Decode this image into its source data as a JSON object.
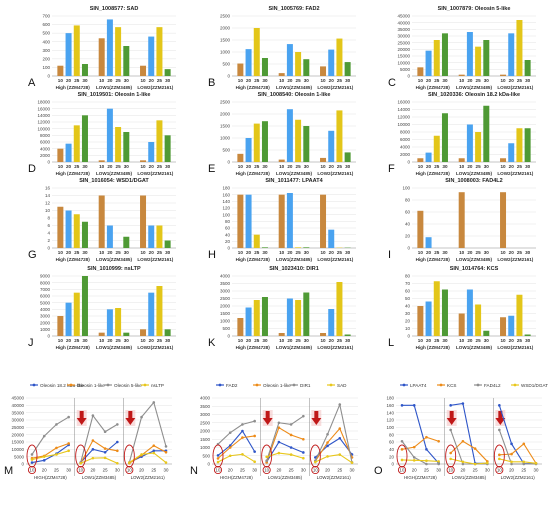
{
  "x_ticks": [
    "10",
    "20",
    "25",
    "30"
  ],
  "groups": [
    "High (ZZM4728)",
    "LOW1(ZZM3485)",
    "LOW2(ZZM2161)"
  ],
  "colors": {
    "c10": "#c8883e",
    "c20": "#4aa3f0",
    "c25": "#e3c619",
    "c30": "#4f9a35",
    "grid": "#e3e3e3",
    "axis": "#9a9a9a",
    "red": "#c01818"
  },
  "chart_data": [
    {
      "type": "bar",
      "letter": "A",
      "title": "SIN_1008577: SAD",
      "ylim": [
        0,
        700
      ],
      "yticks": [
        "0",
        "100",
        "200",
        "300",
        "400",
        "500",
        "600",
        "700"
      ],
      "values": [
        [
          120,
          500,
          590,
          140
        ],
        [
          440,
          660,
          570,
          350
        ],
        [
          120,
          460,
          570,
          80
        ]
      ]
    },
    {
      "type": "bar",
      "letter": "B",
      "title": "SIN_1005769: FAD2",
      "ylim": [
        0,
        2500
      ],
      "yticks": [
        "0",
        "500",
        "1000",
        "1500",
        "2000",
        "2500"
      ],
      "values": [
        [
          520,
          1120,
          2000,
          750
        ],
        [
          120,
          1330,
          1000,
          700
        ],
        [
          400,
          1100,
          1560,
          580
        ]
      ]
    },
    {
      "type": "bar",
      "letter": "C",
      "title": "SIN_1007879: Oleosin 5-like",
      "ylim": [
        0,
        45000
      ],
      "yticks": [
        "0",
        "5000",
        "10000",
        "15000",
        "20000",
        "25000",
        "30000",
        "35000",
        "40000",
        "45000"
      ],
      "values": [
        [
          6500,
          19000,
          27000,
          32000
        ],
        [
          1000,
          33000,
          22000,
          27000
        ],
        [
          1000,
          32000,
          42000,
          12000
        ]
      ]
    },
    {
      "type": "bar",
      "letter": "D",
      "title": "SIN_1019501: Oleosin 1-like",
      "ylim": [
        0,
        18000
      ],
      "yticks": [
        "0",
        "2000",
        "4000",
        "6000",
        "8000",
        "10000",
        "12000",
        "14000",
        "16000",
        "18000"
      ],
      "values": [
        [
          4000,
          5500,
          11000,
          14000
        ],
        [
          500,
          16000,
          10500,
          9000
        ],
        [
          500,
          6000,
          12500,
          8000
        ]
      ]
    },
    {
      "type": "bar",
      "letter": "E",
      "title": "SIN_1008540: Oleosin 1-like",
      "ylim": [
        0,
        2500
      ],
      "yticks": [
        "0",
        "500",
        "1000",
        "1500",
        "2000",
        "2500"
      ],
      "values": [
        [
          340,
          1000,
          1600,
          1700
        ],
        [
          100,
          2200,
          1760,
          1500
        ],
        [
          170,
          1300,
          2150,
          400
        ]
      ]
    },
    {
      "type": "bar",
      "letter": "F",
      "title": "SIN_1020336: Oleosin 18.2 kDa-like",
      "ylim": [
        0,
        16000
      ],
      "yticks": [
        "0",
        "2000",
        "4000",
        "6000",
        "8000",
        "10000",
        "12000",
        "14000",
        "16000"
      ],
      "values": [
        [
          1000,
          2500,
          7000,
          13000
        ],
        [
          1000,
          10000,
          8000,
          15000
        ],
        [
          1000,
          5000,
          9000,
          9000
        ]
      ]
    },
    {
      "type": "bar",
      "letter": "G",
      "title": "SIN_1016054: WSD1/DGAT",
      "ylim": [
        0,
        16
      ],
      "yticks": [
        "0",
        "2",
        "4",
        "6",
        "8",
        "10",
        "12",
        "14",
        "16"
      ],
      "values": [
        [
          11,
          10,
          9,
          7
        ],
        [
          14,
          6,
          0,
          3
        ],
        [
          14,
          6,
          6,
          2
        ]
      ]
    },
    {
      "type": "bar",
      "letter": "H",
      "title": "SIN_1011477: LPAAT4",
      "ylim": [
        0,
        180
      ],
      "yticks": [
        "0",
        "20",
        "40",
        "60",
        "80",
        "100",
        "120",
        "140",
        "160",
        "180"
      ],
      "values": [
        [
          160,
          160,
          40,
          2
        ],
        [
          160,
          165,
          2,
          2
        ],
        [
          160,
          55,
          1,
          1
        ]
      ]
    },
    {
      "type": "bar",
      "letter": "I",
      "title": "SIN_1008003: FAD4L2",
      "ylim": [
        0,
        100
      ],
      "yticks": [
        "0",
        "20",
        "40",
        "60",
        "80",
        "100"
      ],
      "values": [
        [
          62,
          18,
          0,
          0
        ],
        [
          93,
          0,
          0,
          0
        ],
        [
          93,
          0,
          0,
          0
        ]
      ]
    },
    {
      "type": "bar",
      "letter": "J",
      "title": "SIN_1010999: nsLTP",
      "ylim": [
        0,
        9000
      ],
      "yticks": [
        "0",
        "1000",
        "2000",
        "3000",
        "4000",
        "5000",
        "6000",
        "7000",
        "8000",
        "9000"
      ],
      "values": [
        [
          3000,
          5000,
          6500,
          9000
        ],
        [
          500,
          4000,
          4200,
          500
        ],
        [
          1000,
          6500,
          7500,
          1000
        ]
      ]
    },
    {
      "type": "bar",
      "letter": "K",
      "title": "SIN_1023410: DIR1",
      "ylim": [
        0,
        4000
      ],
      "yticks": [
        "0",
        "500",
        "1000",
        "1500",
        "2000",
        "2500",
        "3000",
        "3500",
        "4000"
      ],
      "values": [
        [
          1200,
          1900,
          2400,
          2600
        ],
        [
          200,
          2500,
          2400,
          2900
        ],
        [
          200,
          1800,
          3600,
          100
        ]
      ]
    },
    {
      "type": "bar",
      "letter": "L",
      "title": "SIN_1014764: KCS",
      "ylim": [
        0,
        80
      ],
      "yticks": [
        "0",
        "10",
        "20",
        "30",
        "40",
        "50",
        "60",
        "70",
        "80"
      ],
      "values": [
        [
          40,
          46,
          73,
          62
        ],
        [
          30,
          62,
          42,
          7
        ],
        [
          25,
          27,
          55,
          2
        ]
      ]
    }
  ],
  "line_charts": [
    {
      "letter": "M",
      "ylim": [
        0,
        45000
      ],
      "yticks": [
        "0",
        "5000",
        "10000",
        "15000",
        "20000",
        "25000",
        "30000",
        "35000",
        "40000",
        "45000"
      ],
      "legend": [
        "Oleosin 18.2 kDa-like",
        "Oleosin 1-like",
        "Oleosin 5-like",
        "nsLTP"
      ],
      "colors": [
        "#2e55c8",
        "#ed8b18",
        "#8e8e8e",
        "#e8c71c"
      ],
      "series": [
        [
          [
            1000,
            2500,
            7000,
            13000
          ],
          [
            1000,
            10000,
            8000,
            15000
          ],
          [
            1000,
            5000,
            9000,
            9000
          ]
        ],
        [
          [
            4000,
            5500,
            11000,
            14000
          ],
          [
            500,
            16000,
            10500,
            9000
          ],
          [
            500,
            6000,
            12500,
            8000
          ]
        ],
        [
          [
            6500,
            19000,
            27000,
            32000
          ],
          [
            1000,
            33000,
            22000,
            27000
          ],
          [
            1000,
            32000,
            42000,
            12000
          ]
        ],
        [
          [
            3000,
            5000,
            6500,
            9000
          ],
          [
            500,
            4000,
            4200,
            500
          ],
          [
            1000,
            6500,
            7500,
            1000
          ]
        ]
      ]
    },
    {
      "letter": "N",
      "ylim": [
        0,
        4000
      ],
      "yticks": [
        "0",
        "500",
        "1000",
        "1500",
        "2000",
        "2500",
        "3000",
        "3500",
        "4000"
      ],
      "legend": [
        "FAD2",
        "Oleosin 1-like",
        "DIR1",
        "SAD"
      ],
      "colors": [
        "#2e55c8",
        "#ed8b18",
        "#8e8e8e",
        "#e8c71c"
      ],
      "series": [
        [
          [
            520,
            1120,
            2000,
            750
          ],
          [
            120,
            1330,
            1000,
            700
          ],
          [
            400,
            1100,
            1560,
            580
          ]
        ],
        [
          [
            340,
            1000,
            1600,
            1700
          ],
          [
            100,
            2200,
            1760,
            1500
          ],
          [
            170,
            1300,
            2150,
            400
          ]
        ],
        [
          [
            1200,
            1900,
            2400,
            2600
          ],
          [
            200,
            2500,
            2400,
            2900
          ],
          [
            200,
            1800,
            3600,
            100
          ]
        ],
        [
          [
            120,
            500,
            590,
            140
          ],
          [
            440,
            660,
            570,
            350
          ],
          [
            120,
            460,
            570,
            80
          ]
        ]
      ]
    },
    {
      "letter": "O",
      "ylim": [
        0,
        180
      ],
      "yticks": [
        "0",
        "20",
        "40",
        "60",
        "80",
        "100",
        "120",
        "140",
        "160",
        "180"
      ],
      "legend": [
        "LPAAT4",
        "KCS",
        "FAD4L2",
        "WSD1/DGAT"
      ],
      "colors": [
        "#2e55c8",
        "#ed8b18",
        "#8e8e8e",
        "#e8c71c"
      ],
      "series": [
        [
          [
            160,
            160,
            40,
            2
          ],
          [
            160,
            165,
            2,
            2
          ],
          [
            160,
            55,
            1,
            1
          ]
        ],
        [
          [
            40,
            46,
            73,
            62
          ],
          [
            30,
            62,
            42,
            7
          ],
          [
            25,
            27,
            55,
            2
          ]
        ],
        [
          [
            62,
            18,
            0,
            0
          ],
          [
            93,
            0,
            0,
            0
          ],
          [
            93,
            0,
            0,
            0
          ]
        ],
        [
          [
            11,
            10,
            9,
            7
          ],
          [
            14,
            6,
            0,
            3
          ],
          [
            14,
            6,
            6,
            2
          ]
        ]
      ]
    }
  ]
}
